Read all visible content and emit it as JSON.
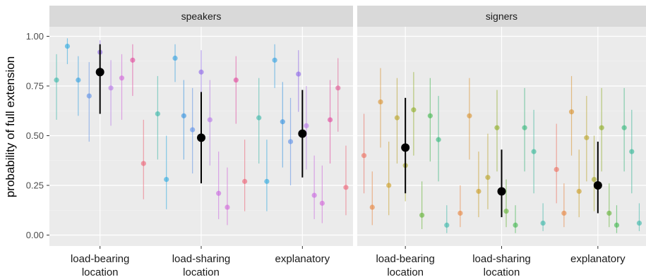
{
  "chart_data": {
    "type": "scatter",
    "ylabel": "probability of full extension",
    "ylim": [
      0,
      1
    ],
    "yticks": [
      0.0,
      0.25,
      0.5,
      0.75,
      1.0
    ],
    "ytick_labels": [
      "0.00",
      "0.25",
      "0.50",
      "0.75",
      "1.00"
    ],
    "grid": true,
    "categories": [
      "load-bearing\nlocation",
      "load-sharing\nlocation",
      "explanatory"
    ],
    "panels": [
      {
        "strip": "speakers",
        "groups": [
          {
            "category": "load-bearing\nlocation",
            "points": [
              {
                "y": 0.78,
                "lo": 0.58,
                "hi": 0.91,
                "color": "#36b6a6"
              },
              {
                "y": 0.95,
                "lo": 0.86,
                "hi": 0.99,
                "color": "#29a8e0"
              },
              {
                "y": 0.78,
                "lo": 0.6,
                "hi": 0.9,
                "color": "#2f9fe0"
              },
              {
                "y": 0.7,
                "lo": 0.47,
                "hi": 0.87,
                "color": "#5a8ee8"
              },
              {
                "y": 0.92,
                "lo": 0.8,
                "hi": 0.98,
                "color": "#8a63e8"
              },
              {
                "y": 0.74,
                "lo": 0.55,
                "hi": 0.88,
                "color": "#b575e8"
              },
              {
                "y": 0.79,
                "lo": 0.58,
                "hi": 0.91,
                "color": "#d063d8"
              },
              {
                "y": 0.88,
                "lo": 0.7,
                "hi": 0.96,
                "color": "#e0439a"
              },
              {
                "y": 0.36,
                "lo": 0.18,
                "hi": 0.58,
                "color": "#ec5f73"
              }
            ],
            "mean": {
              "y": 0.82,
              "lo": 0.61,
              "hi": 0.96
            }
          },
          {
            "category": "load-sharing\nlocation",
            "points": [
              {
                "y": 0.61,
                "lo": 0.38,
                "hi": 0.8,
                "color": "#36b6a6"
              },
              {
                "y": 0.28,
                "lo": 0.13,
                "hi": 0.5,
                "color": "#29a8e0"
              },
              {
                "y": 0.89,
                "lo": 0.77,
                "hi": 0.96,
                "color": "#2f9fe0"
              },
              {
                "y": 0.6,
                "lo": 0.38,
                "hi": 0.78,
                "color": "#2f8fe0"
              },
              {
                "y": 0.53,
                "lo": 0.31,
                "hi": 0.74,
                "color": "#5a8ee8"
              },
              {
                "y": 0.82,
                "lo": 0.64,
                "hi": 0.93,
                "color": "#8a63e8"
              },
              {
                "y": 0.58,
                "lo": 0.35,
                "hi": 0.78,
                "color": "#b575e8"
              },
              {
                "y": 0.21,
                "lo": 0.08,
                "hi": 0.42,
                "color": "#c864e0"
              },
              {
                "y": 0.14,
                "lo": 0.05,
                "hi": 0.34,
                "color": "#d063d8"
              },
              {
                "y": 0.78,
                "lo": 0.56,
                "hi": 0.9,
                "color": "#e0439a"
              },
              {
                "y": 0.27,
                "lo": 0.12,
                "hi": 0.48,
                "color": "#ec5f73"
              }
            ],
            "mean": {
              "y": 0.49,
              "lo": 0.26,
              "hi": 0.72
            }
          },
          {
            "category": "explanatory",
            "points": [
              {
                "y": 0.59,
                "lo": 0.36,
                "hi": 0.79,
                "color": "#36b6a6"
              },
              {
                "y": 0.27,
                "lo": 0.12,
                "hi": 0.48,
                "color": "#29a8e0"
              },
              {
                "y": 0.88,
                "lo": 0.74,
                "hi": 0.96,
                "color": "#2f9fe0"
              },
              {
                "y": 0.57,
                "lo": 0.34,
                "hi": 0.77,
                "color": "#2f8fe0"
              },
              {
                "y": 0.47,
                "lo": 0.25,
                "hi": 0.69,
                "color": "#5a8ee8"
              },
              {
                "y": 0.81,
                "lo": 0.62,
                "hi": 0.93,
                "color": "#8a63e8"
              },
              {
                "y": 0.55,
                "lo": 0.33,
                "hi": 0.75,
                "color": "#b575e8"
              },
              {
                "y": 0.2,
                "lo": 0.08,
                "hi": 0.4,
                "color": "#c864e0"
              },
              {
                "y": 0.16,
                "lo": 0.06,
                "hi": 0.35,
                "color": "#d063d8"
              },
              {
                "y": 0.58,
                "lo": 0.36,
                "hi": 0.78,
                "color": "#e0439a"
              },
              {
                "y": 0.74,
                "lo": 0.52,
                "hi": 0.89,
                "color": "#e05590"
              },
              {
                "y": 0.24,
                "lo": 0.1,
                "hi": 0.45,
                "color": "#ec5f73"
              }
            ],
            "mean": {
              "y": 0.51,
              "lo": 0.29,
              "hi": 0.73
            }
          }
        ]
      },
      {
        "strip": "signers",
        "groups": [
          {
            "category": "load-bearing\nlocation",
            "points": [
              {
                "y": 0.4,
                "lo": 0.21,
                "hi": 0.61,
                "color": "#ec6a5a"
              },
              {
                "y": 0.14,
                "lo": 0.05,
                "hi": 0.32,
                "color": "#e8823a"
              },
              {
                "y": 0.67,
                "lo": 0.44,
                "hi": 0.84,
                "color": "#d9902a"
              },
              {
                "y": 0.25,
                "lo": 0.1,
                "hi": 0.47,
                "color": "#c99a1c"
              },
              {
                "y": 0.59,
                "lo": 0.36,
                "hi": 0.79,
                "color": "#b8a020"
              },
              {
                "y": 0.35,
                "lo": 0.17,
                "hi": 0.57,
                "color": "#a5a51e"
              },
              {
                "y": 0.63,
                "lo": 0.4,
                "hi": 0.82,
                "color": "#8aaa1e"
              },
              {
                "y": 0.1,
                "lo": 0.03,
                "hi": 0.27,
                "color": "#5fb030"
              },
              {
                "y": 0.6,
                "lo": 0.37,
                "hi": 0.79,
                "color": "#3db54a"
              },
              {
                "y": 0.48,
                "lo": 0.27,
                "hi": 0.7,
                "color": "#2fb578"
              },
              {
                "y": 0.05,
                "lo": 0.01,
                "hi": 0.15,
                "color": "#36b6a6"
              }
            ],
            "mean": {
              "y": 0.44,
              "lo": 0.21,
              "hi": 0.69
            }
          },
          {
            "category": "load-sharing\nlocation",
            "points": [
              {
                "y": 0.11,
                "lo": 0.04,
                "hi": 0.25,
                "color": "#e8823a"
              },
              {
                "y": 0.6,
                "lo": 0.38,
                "hi": 0.79,
                "color": "#d9902a"
              },
              {
                "y": 0.22,
                "lo": 0.09,
                "hi": 0.42,
                "color": "#c99a1c"
              },
              {
                "y": 0.29,
                "lo": 0.13,
                "hi": 0.51,
                "color": "#b8a020"
              },
              {
                "y": 0.54,
                "lo": 0.32,
                "hi": 0.73,
                "color": "#8aaa1e"
              },
              {
                "y": 0.12,
                "lo": 0.04,
                "hi": 0.28,
                "color": "#5fb030"
              },
              {
                "y": 0.05,
                "lo": 0.01,
                "hi": 0.15,
                "color": "#3db54a"
              },
              {
                "y": 0.54,
                "lo": 0.32,
                "hi": 0.74,
                "color": "#2fb578"
              },
              {
                "y": 0.42,
                "lo": 0.21,
                "hi": 0.63,
                "color": "#2fb594"
              },
              {
                "y": 0.06,
                "lo": 0.02,
                "hi": 0.16,
                "color": "#36b6a6"
              }
            ],
            "mean": {
              "y": 0.22,
              "lo": 0.09,
              "hi": 0.43
            }
          },
          {
            "category": "explanatory",
            "points": [
              {
                "y": 0.33,
                "lo": 0.16,
                "hi": 0.56,
                "color": "#ec6a5a"
              },
              {
                "y": 0.11,
                "lo": 0.04,
                "hi": 0.26,
                "color": "#e8823a"
              },
              {
                "y": 0.62,
                "lo": 0.4,
                "hi": 0.8,
                "color": "#d9902a"
              },
              {
                "y": 0.22,
                "lo": 0.09,
                "hi": 0.43,
                "color": "#c99a1c"
              },
              {
                "y": 0.49,
                "lo": 0.27,
                "hi": 0.7,
                "color": "#b8a020"
              },
              {
                "y": 0.28,
                "lo": 0.12,
                "hi": 0.5,
                "color": "#a5a51e"
              },
              {
                "y": 0.54,
                "lo": 0.32,
                "hi": 0.74,
                "color": "#8aaa1e"
              },
              {
                "y": 0.11,
                "lo": 0.04,
                "hi": 0.26,
                "color": "#5fb030"
              },
              {
                "y": 0.05,
                "lo": 0.01,
                "hi": 0.15,
                "color": "#3db54a"
              },
              {
                "y": 0.54,
                "lo": 0.32,
                "hi": 0.74,
                "color": "#2fb578"
              },
              {
                "y": 0.42,
                "lo": 0.21,
                "hi": 0.63,
                "color": "#2fb594"
              },
              {
                "y": 0.06,
                "lo": 0.02,
                "hi": 0.16,
                "color": "#36b6a6"
              }
            ],
            "mean": {
              "y": 0.25,
              "lo": 0.11,
              "hi": 0.47
            }
          }
        ]
      }
    ]
  },
  "colors": {
    "panel_bg": "#ebebeb",
    "strip_bg": "#d9d9d9",
    "grid_major": "#ffffff",
    "mean": "#000000"
  }
}
